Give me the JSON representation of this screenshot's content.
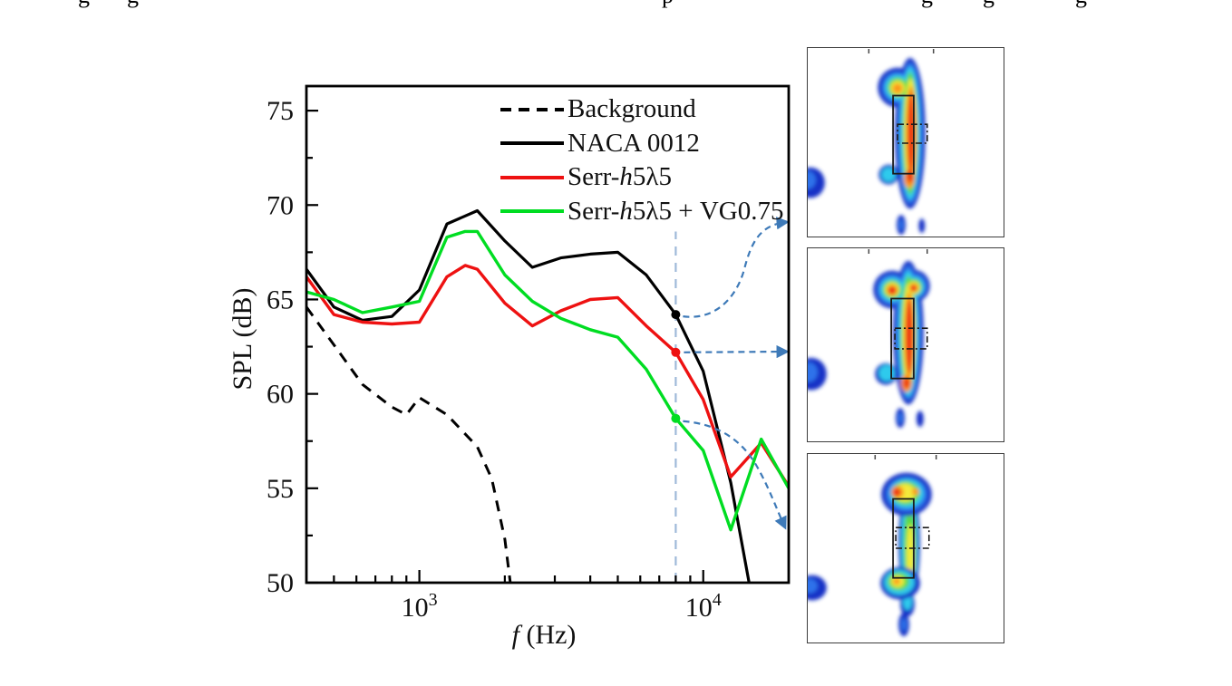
{
  "figure": {
    "top_text_fragments": [
      {
        "glyph": "g",
        "x": 86
      },
      {
        "glyph": "g",
        "x": 140
      },
      {
        "glyph": "p",
        "x": 730
      },
      {
        "glyph": "g",
        "x": 1016
      },
      {
        "glyph": "g",
        "x": 1084
      },
      {
        "glyph": "g",
        "x": 1186
      }
    ]
  },
  "chart_data": {
    "type": "line",
    "title": "",
    "xlabel": "f (Hz)",
    "xlabel_parts": [
      {
        "text": "f",
        "italic": true
      },
      {
        "text": " (Hz)",
        "italic": false
      }
    ],
    "ylabel": "SPL (dB)",
    "x_scale": "log",
    "xlim": [
      400,
      20000
    ],
    "ylim": [
      50,
      76.3
    ],
    "grid": false,
    "y_major_ticks": [
      50,
      55,
      60,
      65,
      70,
      75
    ],
    "y_minor_ticks": [
      52.5,
      57.5,
      62.5,
      67.5,
      72.5
    ],
    "x_major_ticks": [
      {
        "value": 1000,
        "base": "10",
        "exp": "3"
      },
      {
        "value": 10000,
        "base": "10",
        "exp": "4"
      }
    ],
    "x_minor_ticks": [
      500,
      600,
      700,
      800,
      900,
      2000,
      3000,
      4000,
      5000,
      6000,
      7000,
      8000,
      9000
    ],
    "series": [
      {
        "name": "Background",
        "color": "#000000",
        "style": "dashed",
        "width": 3,
        "points": [
          [
            400,
            64.6
          ],
          [
            500,
            62.6
          ],
          [
            630,
            60.5
          ],
          [
            800,
            59.3
          ],
          [
            900,
            58.9
          ],
          [
            1000,
            59.8
          ],
          [
            1250,
            58.9
          ],
          [
            1600,
            57.2
          ],
          [
            1800,
            55.5
          ],
          [
            2000,
            52.3
          ],
          [
            2090,
            50.0
          ]
        ]
      },
      {
        "name": "NACA 0012",
        "color": "#000000",
        "style": "solid",
        "width": 3.2,
        "points": [
          [
            400,
            66.6
          ],
          [
            500,
            64.6
          ],
          [
            630,
            63.9
          ],
          [
            800,
            64.1
          ],
          [
            1000,
            65.5
          ],
          [
            1250,
            69.0
          ],
          [
            1600,
            69.7
          ],
          [
            2000,
            68.1
          ],
          [
            2500,
            66.7
          ],
          [
            3150,
            67.2
          ],
          [
            4000,
            67.4
          ],
          [
            5000,
            67.5
          ],
          [
            6300,
            66.3
          ],
          [
            8000,
            64.2
          ],
          [
            10000,
            61.2
          ],
          [
            12500,
            55.3
          ],
          [
            14500,
            50.0
          ]
        ]
      },
      {
        "name": "Serr-h5λ5",
        "color": "#ee1111",
        "style": "solid",
        "width": 3.4,
        "points": [
          [
            400,
            66.2
          ],
          [
            500,
            64.2
          ],
          [
            630,
            63.8
          ],
          [
            800,
            63.7
          ],
          [
            1000,
            63.8
          ],
          [
            1250,
            66.2
          ],
          [
            1450,
            66.8
          ],
          [
            1600,
            66.6
          ],
          [
            2000,
            64.8
          ],
          [
            2500,
            63.6
          ],
          [
            3150,
            64.4
          ],
          [
            4000,
            65.0
          ],
          [
            5000,
            65.1
          ],
          [
            6300,
            63.6
          ],
          [
            8000,
            62.2
          ],
          [
            10000,
            59.7
          ],
          [
            12500,
            55.6
          ],
          [
            16000,
            57.4
          ],
          [
            20000,
            55.1
          ]
        ]
      },
      {
        "name": "Serr-h5λ5 + VG0.75",
        "color": "#00dd22",
        "style": "solid",
        "width": 3.4,
        "points": [
          [
            400,
            65.4
          ],
          [
            500,
            65.0
          ],
          [
            630,
            64.3
          ],
          [
            800,
            64.6
          ],
          [
            1000,
            64.9
          ],
          [
            1250,
            68.3
          ],
          [
            1450,
            68.6
          ],
          [
            1600,
            68.6
          ],
          [
            2000,
            66.3
          ],
          [
            2500,
            64.9
          ],
          [
            3150,
            64.0
          ],
          [
            4000,
            63.4
          ],
          [
            5000,
            63.0
          ],
          [
            6300,
            61.3
          ],
          [
            8000,
            58.7
          ],
          [
            10000,
            57.0
          ],
          [
            12500,
            52.8
          ],
          [
            16000,
            57.6
          ],
          [
            20000,
            55.0
          ]
        ]
      }
    ],
    "legend": {
      "position": "top-center",
      "entries": [
        {
          "label": "Background",
          "color": "#000000",
          "style": "dashed",
          "parts": [
            {
              "text": "Background",
              "italic": false
            }
          ]
        },
        {
          "label": "NACA 0012",
          "color": "#000000",
          "style": "solid",
          "parts": [
            {
              "text": "NACA 0012",
              "italic": false
            }
          ]
        },
        {
          "label": "Serr-h5λ5",
          "color": "#ee1111",
          "style": "solid",
          "parts": [
            {
              "text": "Serr-",
              "italic": false
            },
            {
              "text": "h",
              "italic": true
            },
            {
              "text": "5λ5",
              "italic": false
            }
          ]
        },
        {
          "label": "Serr-h5λ5 + VG0.75",
          "color": "#00dd22",
          "style": "solid",
          "parts": [
            {
              "text": "Serr-",
              "italic": false
            },
            {
              "text": "h",
              "italic": true
            },
            {
              "text": "5λ5 + VG0.75",
              "italic": false
            }
          ]
        }
      ]
    },
    "annotation": {
      "vline_f_hz": 8000,
      "vline_top_spl": 68.6,
      "vline_color": "#9fb9d9",
      "arrow_color": "#3e7ab8",
      "markers": [
        {
          "series": "NACA 0012",
          "f_hz": 8000,
          "spl_db": 64.2,
          "color": "#000000",
          "links_to": "inset-1"
        },
        {
          "series": "Serr-h5λ5",
          "f_hz": 8000,
          "spl_db": 62.2,
          "color": "#ee1111",
          "links_to": "inset-2"
        },
        {
          "series": "Serr-h5λ5 + VG0.75",
          "f_hz": 8000,
          "spl_db": 58.7,
          "color": "#00dd22",
          "links_to": "inset-3"
        }
      ]
    }
  },
  "insets": {
    "count": 3,
    "colormap": [
      "#1733c6",
      "#2d72ea",
      "#2fcaec",
      "#5cd94a",
      "#f3ea3b",
      "#fb9a1d",
      "#ee3812"
    ],
    "maps": [
      {
        "id": "inset-1",
        "linked_series": "NACA 0012"
      },
      {
        "id": "inset-2",
        "linked_series": "Serr-h5λ5"
      },
      {
        "id": "inset-3",
        "linked_series": "Serr-h5λ5 + VG0.75"
      }
    ]
  }
}
